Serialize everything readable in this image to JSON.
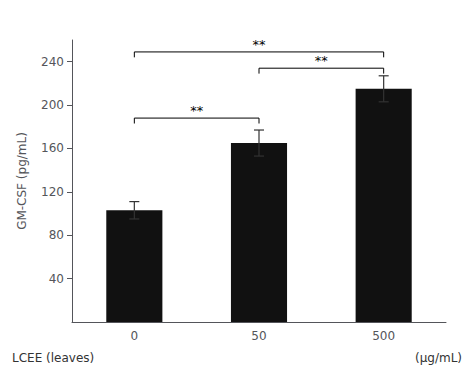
{
  "chart_data": {
    "type": "bar",
    "categories": [
      "0",
      "50",
      "500"
    ],
    "values": [
      103,
      165,
      215
    ],
    "errors": [
      8,
      12,
      12
    ],
    "color": "#111111",
    "ylim": [
      0,
      260
    ],
    "yticks": [
      40,
      80,
      120,
      160,
      200,
      240
    ],
    "ylabel": "GM-CSF (pg/mL)",
    "annotations": [
      "LCEE (leaves)",
      "(μg/mL)"
    ],
    "brackets": [
      {
        "from": "0",
        "to": "50",
        "y": 188,
        "drop": 5,
        "label": "**"
      },
      {
        "from": "50",
        "to": "500",
        "y": 234,
        "drop": 5,
        "label": "**"
      },
      {
        "from": "0",
        "to": "500",
        "y": 249,
        "drop": 5,
        "label": "**"
      }
    ],
    "grid": false
  }
}
